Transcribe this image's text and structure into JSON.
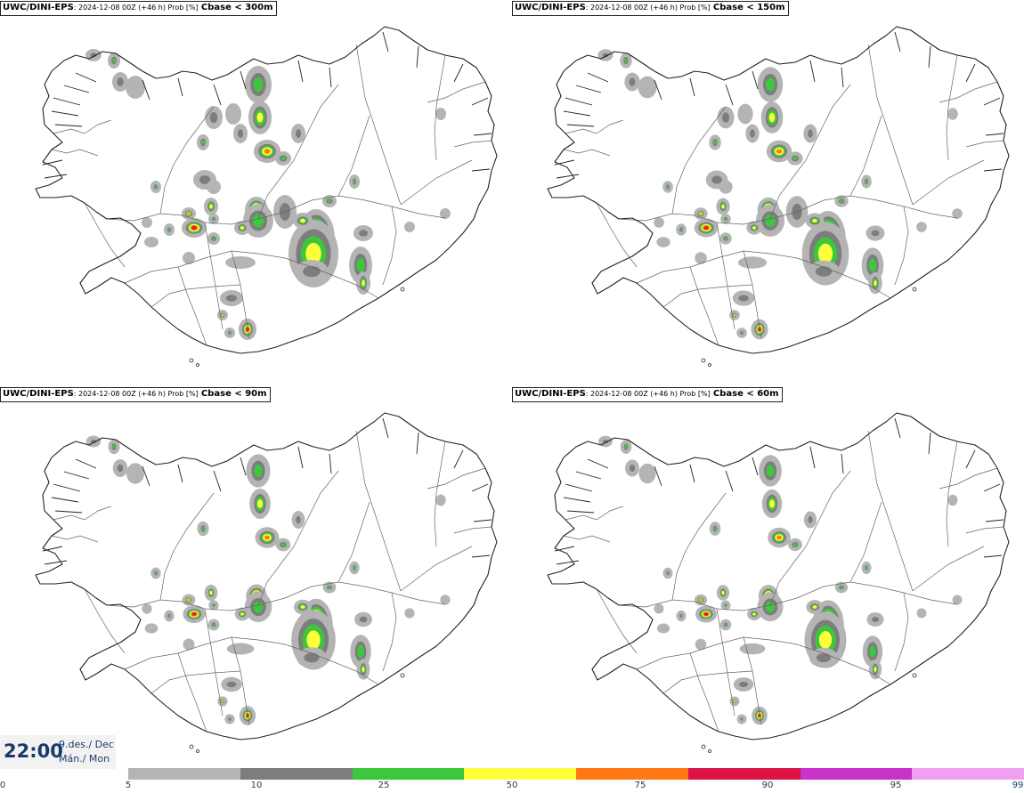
{
  "panels": [
    {
      "model": "UWC/DINI-EPS",
      "meta": ": 2024-12-08 00Z (+46 h) Prob [%]",
      "threshold": "Cbase < 300m",
      "scale": 1.0
    },
    {
      "model": "UWC/DINI-EPS",
      "meta": ": 2024-12-08 00Z (+46 h) Prob [%]",
      "threshold": "Cbase < 150m",
      "scale": 0.85
    },
    {
      "model": "UWC/DINI-EPS",
      "meta": ": 2024-12-08 00Z (+46 h) Prob [%]",
      "threshold": "Cbase < 90m",
      "scale": 0.72
    },
    {
      "model": "UWC/DINI-EPS",
      "meta": ": 2024-12-08 00Z (+46 h) Prob [%]",
      "threshold": "Cbase < 60m",
      "scale": 0.6
    }
  ],
  "valid_time": {
    "time": "22:00",
    "date": "9.des./ Dec",
    "weekday": "Mán./ Mon"
  },
  "legend": {
    "ticks": [
      "0",
      "5",
      "10",
      "25",
      "50",
      "75",
      "90",
      "95",
      "99"
    ],
    "colors": [
      "#b4b4b4",
      "#7d7d7d",
      "#3cc83c",
      "#ffff3c",
      "#ff7814",
      "#dc1446",
      "#c832c8",
      "#f0a0f0"
    ]
  }
}
